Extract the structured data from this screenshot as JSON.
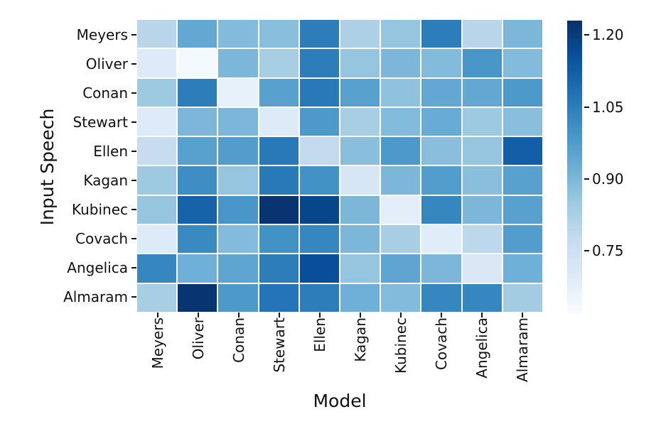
{
  "chart_data": {
    "type": "heatmap",
    "title": "",
    "xlabel": "Model",
    "ylabel": "Input Speech",
    "x_categories": [
      "Meyers",
      "Oliver",
      "Conan",
      "Stewart",
      "Ellen",
      "Kagan",
      "Kubinec",
      "Covach",
      "Angelica",
      "Almaram"
    ],
    "y_categories": [
      "Meyers",
      "Oliver",
      "Conan",
      "Stewart",
      "Ellen",
      "Kagan",
      "Kubinec",
      "Covach",
      "Angelica",
      "Almaram"
    ],
    "values": [
      [
        0.8,
        0.94,
        0.89,
        0.88,
        1.05,
        0.82,
        0.86,
        1.05,
        0.8,
        0.9
      ],
      [
        0.7,
        0.63,
        0.9,
        0.83,
        1.05,
        0.86,
        0.9,
        0.89,
        0.99,
        0.89
      ],
      [
        0.85,
        1.05,
        0.67,
        0.96,
        1.06,
        0.96,
        0.87,
        0.94,
        0.94,
        0.98
      ],
      [
        0.7,
        0.9,
        0.9,
        0.7,
        0.98,
        0.83,
        0.89,
        0.93,
        0.85,
        0.88
      ],
      [
        0.77,
        0.96,
        0.97,
        1.06,
        0.78,
        0.88,
        0.98,
        0.88,
        0.86,
        1.12
      ],
      [
        0.85,
        1.01,
        0.86,
        1.06,
        1.0,
        0.72,
        0.9,
        0.97,
        0.88,
        0.96
      ],
      [
        0.86,
        1.11,
        0.99,
        1.22,
        1.18,
        0.9,
        0.68,
        1.03,
        0.9,
        0.96
      ],
      [
        0.7,
        1.02,
        0.89,
        1.0,
        1.03,
        0.9,
        0.83,
        0.69,
        0.79,
        0.97
      ],
      [
        1.03,
        0.92,
        0.95,
        1.05,
        1.16,
        0.86,
        0.95,
        0.9,
        0.71,
        0.92
      ],
      [
        0.83,
        1.22,
        0.98,
        1.07,
        1.05,
        0.92,
        0.89,
        1.03,
        1.03,
        0.84
      ]
    ],
    "vmin": 0.62,
    "vmax": 1.23,
    "colormap": "Blues",
    "colormap_colors": [
      "#f7fbff",
      "#deebf7",
      "#c6dbef",
      "#9ecae1",
      "#6baed6",
      "#4292c6",
      "#2171b5",
      "#08519c",
      "#08306b"
    ],
    "colorbar_ticks": [
      1.2,
      1.05,
      0.9,
      0.75
    ],
    "colorbar_position": "right",
    "cell_gridlines": "#ffffff",
    "legend": "none"
  }
}
